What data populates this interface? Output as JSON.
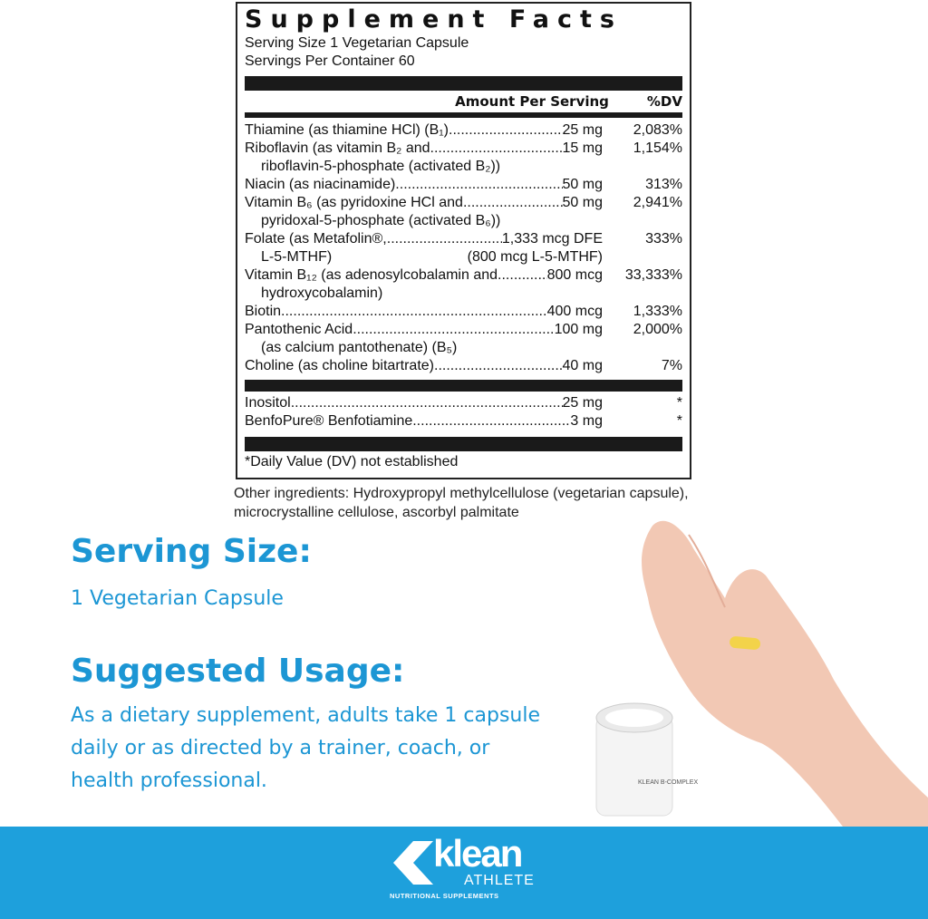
{
  "facts": {
    "title": "Supplement Facts",
    "serving_size": "Serving Size 1 Vegetarian Capsule",
    "servings_per_container": "Servings Per Container 60",
    "col_amount": "Amount Per Serving",
    "col_dv": "%DV",
    "rows": [
      {
        "name": "Thiamine (as thiamine HCl) (B₁)",
        "amount": "25 mg",
        "dv": "2,083%"
      },
      {
        "name": "Riboflavin (as vitamin B₂ and",
        "amount": "15 mg",
        "dv": "1,154%",
        "line2": "riboflavin-5-phosphate (activated B₂))"
      },
      {
        "name": "Niacin (as niacinamide)",
        "amount": "50 mg",
        "dv": "313%"
      },
      {
        "name": "Vitamin B₆ (as pyridoxine HCl and ",
        "amount": "50 mg",
        "dv": "2,941%",
        "line2": "pyridoxal-5-phosphate (activated B₆))"
      },
      {
        "name": "Folate (as Metafolin®, ",
        "amount": " 1,333 mcg DFE",
        "dv": "333%",
        "line2": "L-5-MTHF)",
        "line2_right": "(800 mcg L-5-MTHF)"
      },
      {
        "name": "Vitamin B₁₂ (as adenosylcobalamin and",
        "amount": "800 mcg",
        "dv": "33,333%",
        "line2": "hydroxycobalamin)"
      },
      {
        "name": "Biotin ",
        "amount": "400 mcg",
        "dv": "1,333%"
      },
      {
        "name": "Pantothenic Acid ",
        "amount": "100 mg",
        "dv": "2,000%",
        "line2": "(as calcium pantothenate) (B₅)"
      },
      {
        "name": "Choline (as choline bitartrate)",
        "amount": "40 mg",
        "dv": "7%"
      }
    ],
    "other_rows": [
      {
        "name": "Inositol",
        "amount": "25 mg",
        "dv": "*"
      },
      {
        "name": "BenfoPure® Benfotiamine",
        "amount": "3 mg",
        "dv": "*"
      }
    ],
    "footnote": "*Daily Value (DV) not established"
  },
  "other_ingredients": "Other ingredients: Hydroxypropyl methylcellulose (vegetarian capsule), microcrystalline cellulose, ascorbyl palmitate",
  "serving": {
    "heading": "Serving Size:",
    "value": "1 Vegetarian Capsule"
  },
  "usage": {
    "heading": "Suggested Usage:",
    "value": "As a dietary supplement, adults take 1 capsule daily or as directed by a trainer, coach, or health professional."
  },
  "logo": {
    "brand": "klean",
    "sub": "ATHLETE",
    "tagline": "NUTRITIONAL SUPPLEMENTS"
  },
  "bottle_label": "KLEAN B-COMPLEX",
  "colors": {
    "accent": "#1c96d4",
    "band": "#1ea0dc",
    "capsule": "#f3d34a"
  }
}
